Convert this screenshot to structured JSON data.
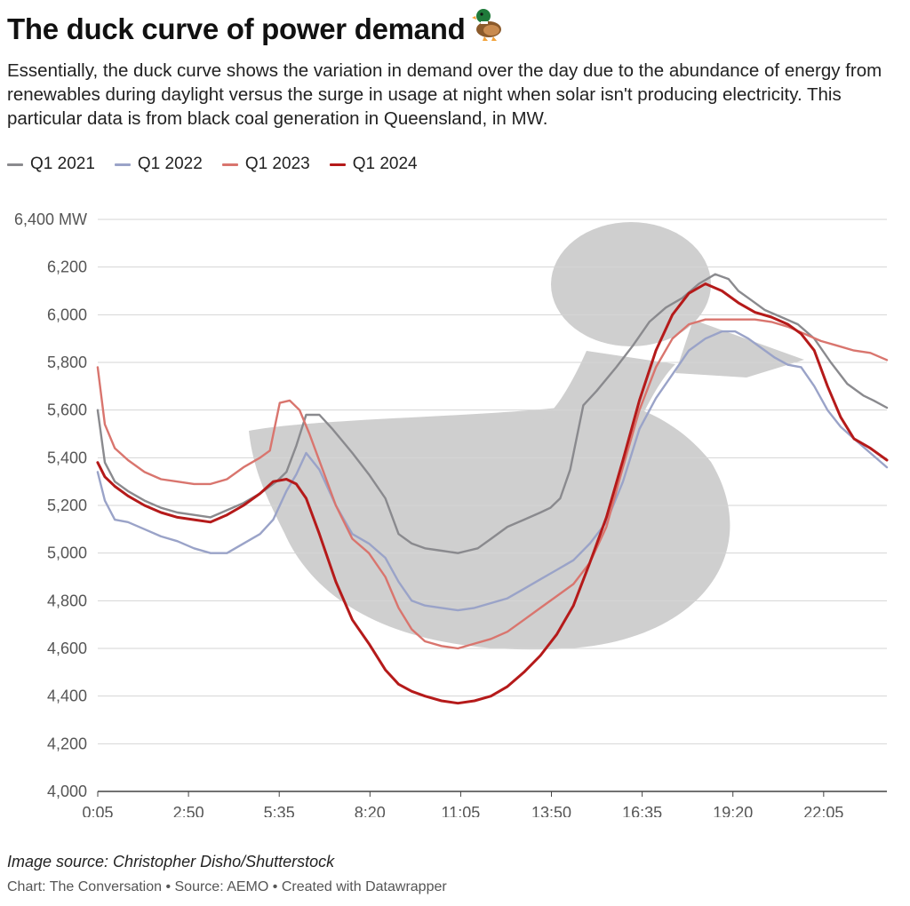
{
  "header": {
    "title": "The duck curve of power demand",
    "subtitle": "Essentially, the duck curve shows the variation in demand over the day due to the abundance of energy from renewables during daylight versus the surge in usage at night when solar isn't producing electricity. This particular data is from black coal generation in Queensland, in MW."
  },
  "legend": [
    {
      "label": "Q1 2021",
      "color": "#8a8a8e"
    },
    {
      "label": "Q1 2022",
      "color": "#9aa3c8"
    },
    {
      "label": "Q1 2023",
      "color": "#d9756e"
    },
    {
      "label": "Q1 2024",
      "color": "#b51a1a"
    }
  ],
  "footer": {
    "image_source": "Image source: Christopher Disho/Shutterstock",
    "credits": "Chart: The Conversation • Source: AEMO • Created with Datawrapper"
  },
  "chart_data": {
    "type": "line",
    "title": "The duck curve of power demand",
    "xlabel": "",
    "ylabel": "",
    "x_unit": "hours",
    "xlim": [
      0.0833,
      24
    ],
    "ylim": [
      4000,
      6400
    ],
    "x_ticks": [
      0.0833,
      2.8333,
      5.5833,
      8.3333,
      11.0833,
      13.8333,
      16.5833,
      19.3333,
      22.0833
    ],
    "x_tick_labels": [
      "0:05",
      "2:50",
      "5:35",
      "8:20",
      "11:05",
      "13:50",
      "16:35",
      "19:20",
      "22:05"
    ],
    "y_ticks": [
      4000,
      4200,
      4400,
      4600,
      4800,
      5000,
      5200,
      5400,
      5600,
      5800,
      6000,
      6200,
      6400
    ],
    "y_tick_labels": [
      "4,000",
      "4,200",
      "4,400",
      "4,600",
      "4,800",
      "5,000",
      "5,200",
      "5,400",
      "5,600",
      "5,800",
      "6,000",
      "6,200",
      "6,400 MW"
    ],
    "grid": true,
    "legend_position": "top-left",
    "series": [
      {
        "name": "Q1 2021",
        "color": "#8a8a8e",
        "x": [
          0.08,
          0.3,
          0.6,
          1,
          1.5,
          2,
          2.5,
          3,
          3.5,
          4,
          4.5,
          5,
          5.5,
          5.8,
          6.1,
          6.4,
          6.8,
          7.2,
          7.8,
          8.3,
          8.8,
          9.2,
          9.6,
          10,
          10.5,
          11,
          11.3,
          11.6,
          12,
          12.5,
          13,
          13.5,
          13.8,
          14.1,
          14.4,
          14.8,
          15.2,
          15.8,
          16.3,
          16.8,
          17.3,
          17.8,
          18.3,
          18.8,
          19.2,
          19.5,
          19.9,
          20.3,
          20.8,
          21.3,
          21.8,
          22.3,
          22.8,
          23.3,
          23.6,
          24
        ],
        "values": [
          5600,
          5380,
          5300,
          5260,
          5220,
          5190,
          5170,
          5160,
          5150,
          5180,
          5210,
          5250,
          5300,
          5340,
          5450,
          5580,
          5580,
          5520,
          5420,
          5330,
          5230,
          5080,
          5040,
          5020,
          5010,
          5000,
          5010,
          5020,
          5060,
          5110,
          5140,
          5170,
          5190,
          5230,
          5350,
          5620,
          5680,
          5780,
          5870,
          5970,
          6030,
          6070,
          6130,
          6170,
          6150,
          6100,
          6060,
          6020,
          5990,
          5960,
          5900,
          5800,
          5710,
          5660,
          5640,
          5610
        ]
      },
      {
        "name": "Q1 2022",
        "color": "#9aa3c8",
        "x": [
          0.08,
          0.3,
          0.6,
          1,
          1.5,
          2,
          2.5,
          3,
          3.5,
          4,
          4.5,
          5,
          5.4,
          5.8,
          6.1,
          6.4,
          6.8,
          7.3,
          7.8,
          8.3,
          8.8,
          9.2,
          9.6,
          10,
          10.5,
          11,
          11.5,
          12,
          12.5,
          13,
          13.5,
          14,
          14.5,
          15,
          15.5,
          16,
          16.5,
          17,
          17.5,
          18,
          18.5,
          19,
          19.4,
          19.8,
          20.2,
          20.6,
          21,
          21.4,
          21.8,
          22.2,
          22.6,
          23,
          23.5,
          24
        ],
        "values": [
          5340,
          5220,
          5140,
          5130,
          5100,
          5070,
          5050,
          5020,
          5000,
          5000,
          5040,
          5080,
          5140,
          5260,
          5330,
          5420,
          5350,
          5200,
          5080,
          5040,
          4980,
          4880,
          4800,
          4780,
          4770,
          4760,
          4770,
          4790,
          4810,
          4850,
          4890,
          4930,
          4970,
          5040,
          5130,
          5300,
          5520,
          5650,
          5750,
          5850,
          5900,
          5930,
          5930,
          5900,
          5860,
          5820,
          5790,
          5780,
          5700,
          5600,
          5530,
          5480,
          5420,
          5360
        ]
      },
      {
        "name": "Q1 2023",
        "color": "#d9756e",
        "x": [
          0.08,
          0.3,
          0.6,
          1,
          1.5,
          2,
          2.5,
          3,
          3.5,
          4,
          4.5,
          5,
          5.3,
          5.6,
          5.9,
          6.2,
          6.5,
          6.9,
          7.3,
          7.8,
          8.3,
          8.8,
          9.2,
          9.6,
          10,
          10.5,
          11,
          11.5,
          12,
          12.5,
          13,
          13.5,
          14,
          14.5,
          15,
          15.5,
          16,
          16.5,
          17,
          17.5,
          18,
          18.5,
          19,
          19.5,
          20,
          20.5,
          21,
          21.5,
          22,
          22.5,
          23,
          23.5,
          24
        ],
        "values": [
          5780,
          5540,
          5440,
          5390,
          5340,
          5310,
          5300,
          5290,
          5290,
          5310,
          5360,
          5400,
          5430,
          5630,
          5640,
          5600,
          5500,
          5350,
          5200,
          5060,
          5000,
          4900,
          4770,
          4680,
          4630,
          4610,
          4600,
          4620,
          4640,
          4670,
          4720,
          4770,
          4820,
          4870,
          4960,
          5110,
          5360,
          5600,
          5780,
          5900,
          5960,
          5980,
          5980,
          5980,
          5980,
          5970,
          5950,
          5920,
          5890,
          5870,
          5850,
          5840,
          5810
        ]
      },
      {
        "name": "Q1 2024",
        "color": "#b51a1a",
        "x": [
          0.08,
          0.3,
          0.6,
          1,
          1.5,
          2,
          2.5,
          3,
          3.5,
          4,
          4.5,
          5,
          5.4,
          5.8,
          6.1,
          6.4,
          6.8,
          7.3,
          7.8,
          8.3,
          8.8,
          9.2,
          9.6,
          10,
          10.5,
          11,
          11.5,
          12,
          12.5,
          13,
          13.5,
          14,
          14.5,
          15,
          15.5,
          16,
          16.5,
          17,
          17.5,
          18,
          18.5,
          19,
          19.5,
          20,
          20.5,
          21,
          21.4,
          21.8,
          22.2,
          22.6,
          23,
          23.5,
          24
        ],
        "values": [
          5380,
          5320,
          5280,
          5240,
          5200,
          5170,
          5150,
          5140,
          5130,
          5160,
          5200,
          5250,
          5300,
          5310,
          5290,
          5230,
          5080,
          4880,
          4720,
          4620,
          4510,
          4450,
          4420,
          4400,
          4380,
          4370,
          4380,
          4400,
          4440,
          4500,
          4570,
          4660,
          4780,
          4960,
          5150,
          5390,
          5640,
          5850,
          6000,
          6090,
          6130,
          6100,
          6050,
          6010,
          5990,
          5960,
          5920,
          5850,
          5700,
          5570,
          5480,
          5440,
          5390
        ]
      }
    ]
  }
}
